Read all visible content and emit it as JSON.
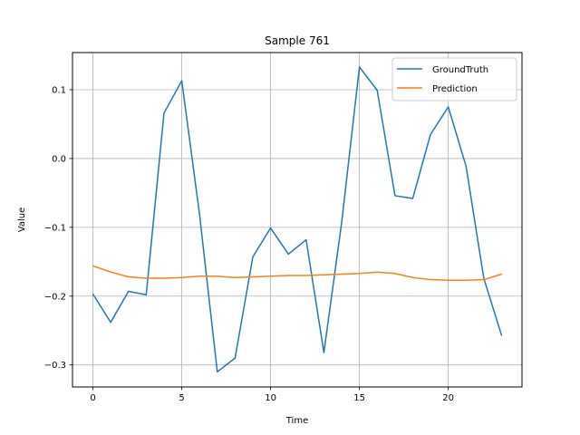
{
  "chart_data": {
    "type": "line",
    "title": "Sample 761",
    "xlabel": "Time",
    "ylabel": "Value",
    "xlim": [
      -1.15,
      24.15
    ],
    "ylim": [
      -0.332,
      0.154
    ],
    "grid": true,
    "legend_position": "top-right",
    "x_ticks": [
      0,
      5,
      10,
      15,
      20
    ],
    "x_tick_labels": [
      "0",
      "5",
      "10",
      "15",
      "20"
    ],
    "y_ticks": [
      0.1,
      0.0,
      -0.1,
      -0.2,
      -0.3
    ],
    "y_tick_labels": [
      "0.1",
      "0.0",
      "−0.1",
      "−0.2",
      "−0.3"
    ],
    "x": [
      0,
      1,
      2,
      3,
      4,
      5,
      6,
      7,
      8,
      9,
      10,
      11,
      12,
      13,
      14,
      15,
      16,
      17,
      18,
      19,
      20,
      21,
      22,
      23
    ],
    "series": [
      {
        "name": "GroundTruth",
        "color": "#1f77b4",
        "values": [
          -0.197,
          -0.238,
          -0.193,
          -0.198,
          0.066,
          0.113,
          -0.081,
          -0.31,
          -0.29,
          -0.143,
          -0.101,
          -0.139,
          -0.118,
          -0.282,
          -0.093,
          0.133,
          0.099,
          -0.054,
          -0.058,
          0.035,
          0.075,
          -0.011,
          -0.174,
          -0.257
        ]
      },
      {
        "name": "Prediction",
        "color": "#ff7f0e",
        "values": [
          -0.156,
          -0.165,
          -0.172,
          -0.174,
          -0.174,
          -0.173,
          -0.171,
          -0.171,
          -0.173,
          -0.172,
          -0.171,
          -0.17,
          -0.17,
          -0.169,
          -0.168,
          -0.167,
          -0.165,
          -0.167,
          -0.173,
          -0.176,
          -0.177,
          -0.177,
          -0.176,
          -0.168
        ]
      }
    ]
  }
}
